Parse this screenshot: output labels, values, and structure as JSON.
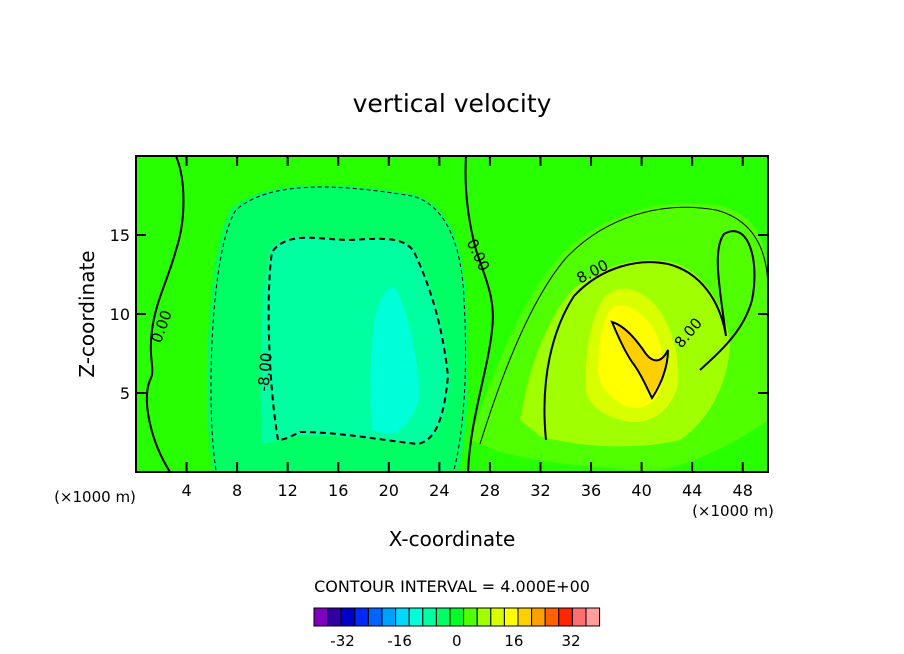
{
  "chart_data": {
    "type": "heatmap",
    "title": "vertical velocity",
    "xlabel": "X-coordinate",
    "ylabel": "Z-coordinate",
    "x_unit": "(×1000 m)",
    "xlim": [
      0,
      50
    ],
    "ylim": [
      0,
      20
    ],
    "x_ticks": [
      4,
      8,
      12,
      16,
      20,
      24,
      28,
      32,
      36,
      40,
      44,
      48
    ],
    "y_ticks": [
      5,
      10,
      15
    ],
    "contour_interval_text": "CONTOUR INTERVAL = 4.000E+00",
    "contour_labels": [
      {
        "text": "0.00",
        "x": 2.4,
        "z": 9.1,
        "angle": -70
      },
      {
        "text": "0.00",
        "x": 26.7,
        "z": 13.6,
        "angle": 65
      },
      {
        "text": "-8.00",
        "x": 10.6,
        "z": 6.3,
        "angle": -85
      },
      {
        "text": "8.00",
        "x": 36.3,
        "z": 12.4,
        "angle": -28
      },
      {
        "text": "8.00",
        "x": 44.0,
        "z": 8.6,
        "angle": -50
      }
    ],
    "colorbar": {
      "levels": [
        -40,
        -36,
        -32,
        -28,
        -24,
        -20,
        -16,
        -12,
        -8,
        -4,
        0,
        4,
        8,
        12,
        16,
        20,
        24,
        28,
        32,
        36,
        40
      ],
      "tick_labels": [
        "-32",
        "-16",
        "0",
        "16",
        "32"
      ],
      "tick_values": [
        -32,
        -16,
        0,
        16,
        32
      ],
      "colors": [
        "#8000c0",
        "#3000a0",
        "#0000c8",
        "#0028ff",
        "#0064ff",
        "#00a0ff",
        "#00d8ff",
        "#00ffd8",
        "#00ffa0",
        "#00ff64",
        "#00ff28",
        "#50ff00",
        "#a0ff00",
        "#d8ff00",
        "#ffff00",
        "#ffd000",
        "#ffa000",
        "#ff6000",
        "#ff2800",
        "#ff6e6e",
        "#ff9c9c"
      ]
    }
  }
}
